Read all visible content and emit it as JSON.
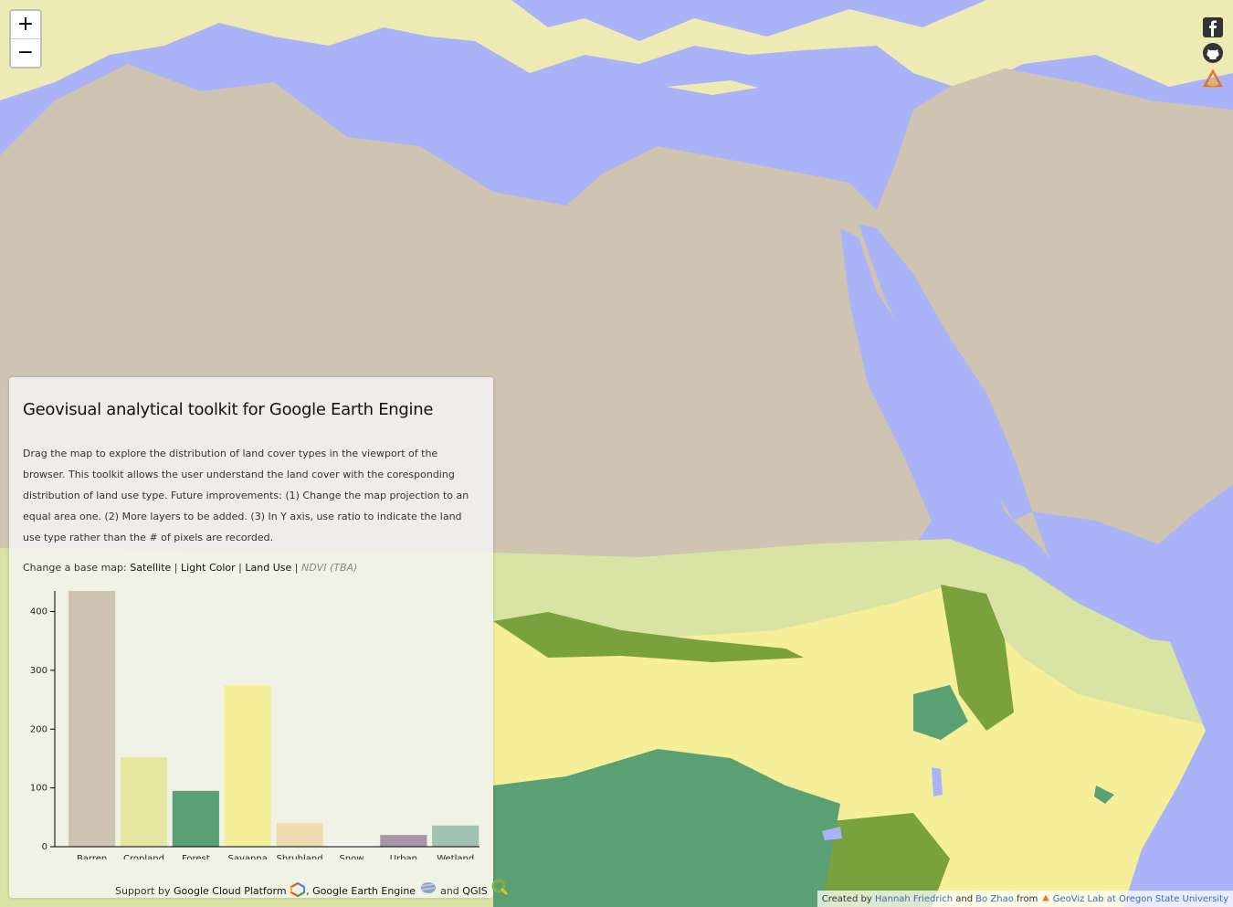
{
  "map": {
    "colors": {
      "water": "#aab3f8",
      "barren": "#cfc3b2",
      "shrub": "#eeeab4",
      "savanna": "#f5ef9a",
      "grass": "#d9e3a3",
      "forest": "#5aa073",
      "crop": "#79a23f",
      "wetland": "#8fbda8"
    }
  },
  "zoom": {
    "in_label": "+",
    "out_label": "−"
  },
  "social": [
    "facebook-icon",
    "github-icon",
    "geoviz-icon"
  ],
  "panel": {
    "title": "Geovisual analytical toolkit for Google Earth Engine",
    "description": "Drag the map to explore the distribution of land cover types in the viewport of the browser. This toolkit allows the user understand the land cover with the coresponding distribution of land use type. Future improvements: (1) Change the map projection to an equal area one. (2) More layers to be added. (3) In Y axis, use ratio to indicate the land use type rather than the # of pixels are recorded.",
    "basemap_prefix": "Change a base map:",
    "basemaps": [
      "Satellite",
      "Light Color",
      "Land Use"
    ],
    "basemap_tba": "NDVI (TBA)",
    "separator": "|",
    "support": {
      "prefix": "Support by",
      "platform": "Google Cloud Platform",
      "comma": ",",
      "engine": "Google Earth Engine",
      "and": "and",
      "qgis": "QGIS"
    }
  },
  "chart_data": {
    "type": "bar",
    "categories": [
      "Barren",
      "Cropland",
      "Forest",
      "Savanna",
      "Shrubland",
      "Snow",
      "Urban",
      "Wetland"
    ],
    "values": [
      435,
      152,
      95,
      275,
      40,
      5,
      20,
      36
    ],
    "colors": [
      "#cfc3b2",
      "#e6e6a0",
      "#5aa073",
      "#f5ef9a",
      "#eedcb0",
      "#f5f5f5",
      "#a895aa",
      "#9fc3b0"
    ],
    "yticks": [
      0,
      100,
      200,
      300,
      400
    ],
    "ylim": [
      0,
      435
    ],
    "title": "",
    "xlabel": "",
    "ylabel": ""
  },
  "credits": {
    "created": "Created by",
    "author1": "Hannah Friedrich",
    "and": "and",
    "author2": "Bo Zhao",
    "from": "from",
    "lab": "GeoViz Lab at Oregon State University"
  }
}
